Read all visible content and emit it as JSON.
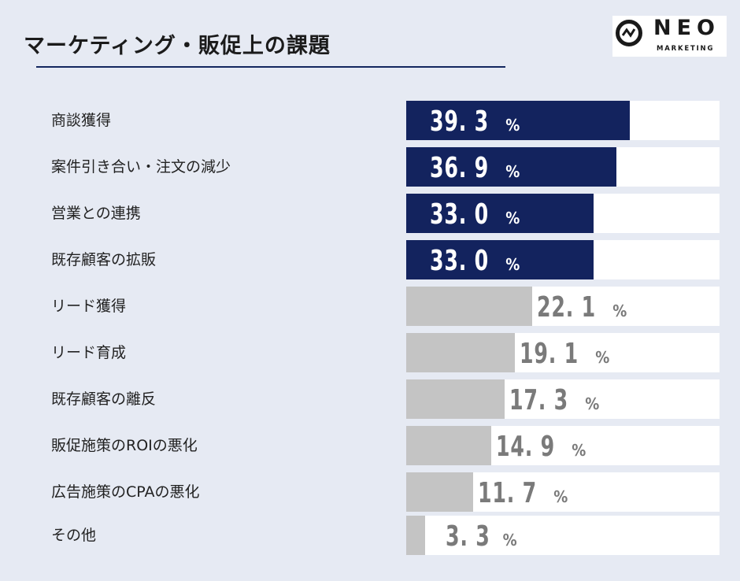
{
  "title": "マーケティング・販促上の課題",
  "logo": {
    "word": "NEO",
    "sub": "MARKETING"
  },
  "colors": {
    "highlight": "#13235e",
    "normal": "#c4c4c4",
    "track": "#ffffff",
    "background": "#e6eaf3"
  },
  "chart_data": {
    "type": "bar",
    "orientation": "horizontal",
    "title": "マーケティング・販促上の課題",
    "unit": "%",
    "categories": [
      "商談獲得",
      "案件引き合い・注文の減少",
      "営業との連携",
      "既存顧客の拡販",
      "リード獲得",
      "リード育成",
      "既存顧客の離反",
      "販促施策のROIの悪化",
      "広告施策のCPAの悪化",
      "その他"
    ],
    "values": [
      39.3,
      36.9,
      33.0,
      33.0,
      22.1,
      19.1,
      17.3,
      14.9,
      11.7,
      3.3
    ],
    "value_labels": [
      "39. 3",
      "36. 9",
      "33. 0",
      "33. 0",
      "22. 1",
      "19. 1",
      "17. 3",
      "14. 9",
      "11. 7",
      "3. 3"
    ],
    "highlighted_top": 4,
    "xlim": [
      0,
      50
    ]
  }
}
